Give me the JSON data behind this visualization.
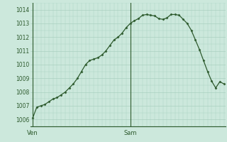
{
  "background_color": "#cce8dc",
  "grid_color": "#aad0c0",
  "line_color": "#2d5a2d",
  "marker_color": "#2d5a2d",
  "ylim": [
    1005.5,
    1014.5
  ],
  "yticks": [
    1006,
    1007,
    1008,
    1009,
    1010,
    1011,
    1012,
    1013,
    1014
  ],
  "ven_x": 0,
  "sam_x": 24,
  "xlim": [
    -0.5,
    47.5
  ],
  "x_values": [
    0,
    1,
    2,
    3,
    4,
    5,
    6,
    7,
    8,
    9,
    10,
    11,
    12,
    13,
    14,
    15,
    16,
    17,
    18,
    19,
    20,
    21,
    22,
    23,
    24,
    25,
    26,
    27,
    28,
    29,
    30,
    31,
    32,
    33,
    34,
    35,
    36,
    37,
    38,
    39,
    40,
    41,
    42,
    43,
    44,
    45,
    46,
    47
  ],
  "y_values": [
    1006.1,
    1006.9,
    1007.0,
    1007.1,
    1007.3,
    1007.5,
    1007.6,
    1007.8,
    1008.0,
    1008.3,
    1008.6,
    1009.0,
    1009.5,
    1010.0,
    1010.3,
    1010.4,
    1010.5,
    1010.7,
    1011.0,
    1011.4,
    1011.8,
    1012.0,
    1012.3,
    1012.7,
    1013.0,
    1013.2,
    1013.35,
    1013.6,
    1013.65,
    1013.6,
    1013.55,
    1013.35,
    1013.3,
    1013.4,
    1013.65,
    1013.65,
    1013.6,
    1013.3,
    1013.0,
    1012.5,
    1011.8,
    1011.1,
    1010.3,
    1009.5,
    1008.8,
    1008.3,
    1008.75,
    1008.6
  ]
}
